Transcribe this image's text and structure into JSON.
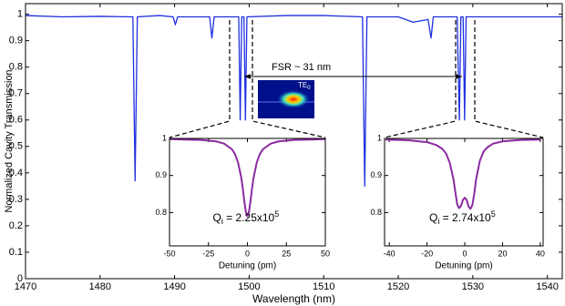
{
  "chart_data": [
    {
      "type": "line",
      "x_label": "Wavelength (nm)",
      "y_label": "Normalized Cavity Transmission",
      "xlim": [
        1470,
        1542
      ],
      "ylim": [
        0,
        1.04
      ],
      "xticks": [
        1470,
        1480,
        1490,
        1500,
        1510,
        1520,
        1530,
        1540
      ],
      "yticks": [
        0,
        0.1,
        0.2,
        0.3,
        0.4,
        0.5,
        0.6,
        0.7,
        0.8,
        0.9,
        1
      ],
      "x": [
        1470,
        1475,
        1480,
        1484.4,
        1484.7,
        1485.0,
        1488,
        1489.8,
        1490.1,
        1490.4,
        1494.7,
        1495.0,
        1495.3,
        1498.6,
        1498.8,
        1499.0,
        1499.3,
        1499.5,
        1499.7,
        1505,
        1510,
        1515.2,
        1515.5,
        1515.8,
        1520,
        1522,
        1524,
        1524.4,
        1524.7,
        1527.9,
        1528.2,
        1528.4,
        1528.7,
        1528.9,
        1529.1,
        1535,
        1542
      ],
      "series": [
        {
          "color": "#1f2fe0",
          "values": [
            0.995,
            0.99,
            0.992,
            0.99,
            0.37,
            0.99,
            0.995,
            0.99,
            0.96,
            0.99,
            0.99,
            0.91,
            0.99,
            0.99,
            0.6,
            0.99,
            0.99,
            0.6,
            0.99,
            0.995,
            0.995,
            0.99,
            0.35,
            0.99,
            0.99,
            0.97,
            0.98,
            0.91,
            0.99,
            0.99,
            0.6,
            0.99,
            0.99,
            0.6,
            0.99,
            0.99,
            0.99
          ]
        }
      ],
      "annotations": {
        "fsr": "FSR ~ 31 nm",
        "mode": "TE",
        "mode_sub": "0"
      }
    },
    {
      "type": "line",
      "x_label": "Detuning (pm)",
      "xlim": [
        -50,
        50
      ],
      "ylim": [
        0.71,
        1.0
      ],
      "xticks": [
        -50,
        -25,
        0,
        25,
        50
      ],
      "yticks": [
        0.8,
        0.9,
        1
      ],
      "x": [
        -50,
        -40,
        -30,
        -20,
        -15,
        -10,
        -8,
        -6,
        -4,
        -3,
        -2,
        -1,
        0,
        1,
        2,
        3,
        4,
        6,
        8,
        10,
        15,
        20,
        30,
        40,
        50
      ],
      "series": [
        {
          "color": "#8a2aa0",
          "values": [
            0.998,
            0.997,
            0.996,
            0.992,
            0.986,
            0.971,
            0.958,
            0.935,
            0.895,
            0.866,
            0.832,
            0.802,
            0.79,
            0.802,
            0.832,
            0.866,
            0.895,
            0.935,
            0.958,
            0.971,
            0.986,
            0.992,
            0.996,
            0.997,
            0.998
          ]
        }
      ],
      "annotation": {
        "symbol": "Q",
        "sub": "i",
        "main": " = 2.25x10",
        "exp": "5"
      }
    },
    {
      "type": "line",
      "x_label": "Detuning (pm)",
      "xlim": [
        -42.5,
        41.5
      ],
      "ylim": [
        0.71,
        1.0
      ],
      "xticks": [
        -40,
        -20,
        0,
        20,
        40
      ],
      "yticks": [
        0.8,
        0.9,
        1
      ],
      "x": [
        -42,
        -30,
        -20,
        -15,
        -12,
        -10,
        -8,
        -6,
        -5,
        -4,
        -3,
        -2,
        -1,
        0,
        1,
        2,
        3,
        4,
        5,
        6,
        8,
        10,
        12,
        15,
        20,
        30,
        40
      ],
      "series": [
        {
          "color": "#8a2aa0",
          "values": [
            0.997,
            0.995,
            0.99,
            0.982,
            0.972,
            0.96,
            0.935,
            0.89,
            0.855,
            0.822,
            0.812,
            0.818,
            0.834,
            0.84,
            0.834,
            0.816,
            0.81,
            0.82,
            0.85,
            0.89,
            0.94,
            0.965,
            0.976,
            0.986,
            0.992,
            0.996,
            0.997
          ]
        }
      ],
      "annotation": {
        "symbol": "Q",
        "sub": "i",
        "main": " = 2.74x10",
        "exp": "5"
      }
    }
  ]
}
